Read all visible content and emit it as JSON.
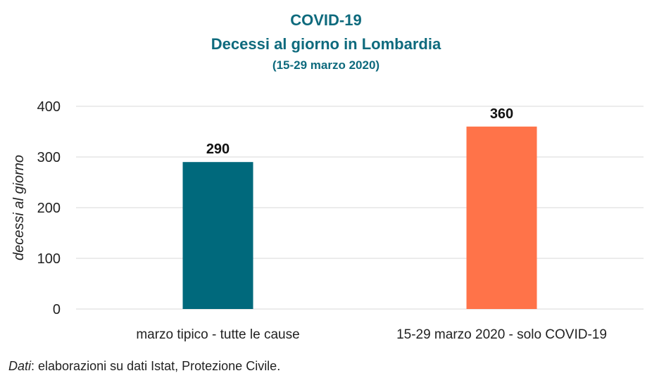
{
  "chart_data": {
    "type": "bar",
    "title": "COVID-19",
    "subtitle": "Decessi al giorno in Lombardia",
    "period": "(15-29 marzo 2020)",
    "categories": [
      "marzo tipico - tutte le cause",
      "15-29 marzo 2020 - solo COVID-19"
    ],
    "values": [
      290,
      360
    ],
    "data_labels": [
      "290",
      "360"
    ],
    "bar_colors": [
      "#00697c",
      "#ff7349"
    ],
    "xlabel": "",
    "ylabel": "decessi al giorno",
    "ylim": [
      0,
      400
    ],
    "yticks": [
      0,
      100,
      200,
      300,
      400
    ],
    "ytick_labels": [
      "0",
      "100",
      "200",
      "300",
      "400"
    ],
    "grid": true,
    "legend": "none"
  },
  "source": {
    "prefix": "Dati",
    "text": ": elaborazioni su dati Istat, Protezione Civile."
  },
  "colors": {
    "title": "#0e6a7d",
    "grid": "#d9d9d9",
    "text": "#222222"
  }
}
